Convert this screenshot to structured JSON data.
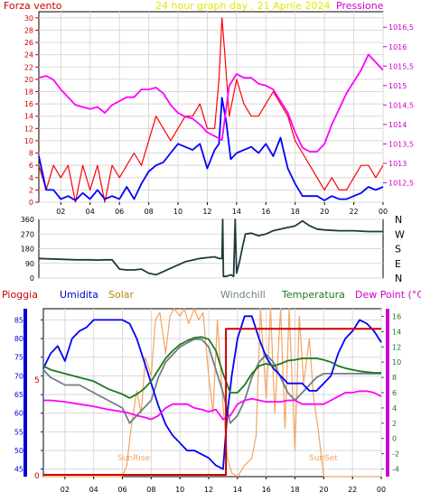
{
  "title": "24 hour graph day , 21 Aprile 2024",
  "colors": {
    "wind": "#ff0000",
    "gust": "#0000ff",
    "pressure": "#ff00ff",
    "direction": "#1f3b3b",
    "humidity": "#0000ff",
    "solar": "#f4a460",
    "windchill": "#708080",
    "temperature": "#1a7a1a",
    "dewpoint": "#ff00ff",
    "rain": "#cc0000",
    "axis_left": "#0000cc",
    "axis_pressure": "#cc00cc",
    "axis_right_bottom": "#1a7a1a",
    "grid": "#d8d8d8",
    "frame": "#000000"
  },
  "chart_data": [
    {
      "type": "line",
      "panel": "wind",
      "left_label": "Forza vento",
      "title": "24 hour graph day , 21 Aprile 2024",
      "right_label": "Pressione",
      "x_ticks": [
        "02",
        "04",
        "06",
        "08",
        "10",
        "12",
        "14",
        "16",
        "18",
        "20",
        "22",
        "00"
      ],
      "x_range": [
        0.5,
        24.0
      ],
      "y_ticks": [
        "0",
        "2",
        "4",
        "6",
        "8",
        "10",
        "12",
        "14",
        "16",
        "18",
        "20",
        "22",
        "24",
        "26",
        "28",
        "30"
      ],
      "ylim": [
        0,
        31
      ],
      "y2_ticks": [
        "1012,5",
        "1013",
        "1013,5",
        "1014",
        "1014,5",
        "1015",
        "1015,5",
        "1016",
        "1016,5"
      ],
      "y2_values": [
        1012.5,
        1013,
        1013.5,
        1014,
        1014.5,
        1015,
        1015.5,
        1016,
        1016.5
      ],
      "y2lim": [
        1012.0,
        1016.9
      ],
      "series": [
        {
          "id": "gust",
          "axis": "left",
          "x": [
            0.5,
            1.0,
            1.5,
            2.0,
            2.5,
            3.0,
            3.5,
            4.0,
            4.5,
            5.0,
            5.5,
            6.0,
            6.5,
            7.0,
            7.5,
            8.0,
            8.5,
            9.0,
            9.5,
            10.0,
            10.5,
            11.0,
            11.5,
            12.0,
            12.5,
            12.8,
            13.0,
            13.2,
            13.5,
            14.0,
            14.5,
            15.0,
            15.5,
            16.0,
            16.5,
            17.0,
            17.5,
            18.0,
            18.5,
            19.0,
            19.5,
            20.0,
            20.5,
            21.0,
            21.5,
            22.0,
            22.5,
            23.0,
            23.5,
            24.0
          ],
          "values": [
            6,
            2,
            6,
            4,
            6,
            0,
            6,
            2,
            6,
            0,
            6,
            4,
            6,
            8,
            6,
            10,
            14,
            12,
            10,
            12,
            14,
            14,
            16,
            12,
            12,
            20,
            30,
            24,
            14,
            20,
            16,
            14,
            14,
            16,
            18,
            16,
            14,
            10,
            8,
            6,
            4,
            2,
            4,
            2,
            2,
            4,
            6,
            6,
            4,
            6
          ]
        },
        {
          "id": "wind",
          "axis": "left",
          "x": [
            0.5,
            1.0,
            1.5,
            2.0,
            2.5,
            3.0,
            3.5,
            4.0,
            4.5,
            5.0,
            5.5,
            6.0,
            6.5,
            7.0,
            7.5,
            8.0,
            8.5,
            9.0,
            9.5,
            10.0,
            10.5,
            11.0,
            11.5,
            12.0,
            12.5,
            12.8,
            13.0,
            13.3,
            13.6,
            14.0,
            14.5,
            15.0,
            15.5,
            16.0,
            16.5,
            17.0,
            17.5,
            18.0,
            18.5,
            19.0,
            19.5,
            20.0,
            20.5,
            21.0,
            21.5,
            22.0,
            22.5,
            23.0,
            23.5,
            24.0
          ],
          "values": [
            7.5,
            2,
            2,
            0.5,
            1,
            0.3,
            1.5,
            0.5,
            2,
            0.5,
            1,
            0.5,
            2.5,
            0.5,
            3,
            5,
            6,
            6.5,
            8,
            9.5,
            9,
            8.5,
            9.5,
            5.5,
            8.5,
            9.5,
            17,
            13,
            7,
            8,
            8.5,
            9,
            8,
            9.5,
            7.5,
            10.5,
            5.5,
            3,
            1,
            1,
            1,
            0.3,
            1,
            0.5,
            0.5,
            1,
            1.5,
            2.5,
            2,
            2.5
          ]
        },
        {
          "id": "pressure",
          "axis": "right",
          "x": [
            0.5,
            1.0,
            1.5,
            2.0,
            2.5,
            3.0,
            3.5,
            4.0,
            4.5,
            5.0,
            5.5,
            6.0,
            6.5,
            7.0,
            7.5,
            8.0,
            8.5,
            9.0,
            9.5,
            10.0,
            10.5,
            11.0,
            11.5,
            12.0,
            12.5,
            13.0,
            13.5,
            14.0,
            14.5,
            15.0,
            15.5,
            16.0,
            16.5,
            17.0,
            17.5,
            18.0,
            18.5,
            19.0,
            19.5,
            20.0,
            20.5,
            21.0,
            21.5,
            22.0,
            22.5,
            23.0,
            23.5,
            24.0
          ],
          "values": [
            1015.2,
            1015.25,
            1015.15,
            1014.9,
            1014.7,
            1014.5,
            1014.45,
            1014.4,
            1014.45,
            1014.3,
            1014.5,
            1014.6,
            1014.7,
            1014.7,
            1014.9,
            1014.9,
            1014.95,
            1014.8,
            1014.5,
            1014.3,
            1014.2,
            1014.15,
            1014.0,
            1013.8,
            1013.7,
            1013.6,
            1015.0,
            1015.3,
            1015.2,
            1015.2,
            1015.05,
            1015.0,
            1014.9,
            1014.6,
            1014.3,
            1013.8,
            1013.4,
            1013.3,
            1013.3,
            1013.5,
            1014.0,
            1014.4,
            1014.8,
            1015.1,
            1015.4,
            1015.8,
            1015.6,
            1015.4
          ]
        }
      ]
    },
    {
      "type": "line",
      "panel": "direction",
      "x_range": [
        0.5,
        24.0
      ],
      "y_ticks": [
        "0",
        "90",
        "180",
        "270",
        "360"
      ],
      "ylim": [
        0,
        360
      ],
      "compass": [
        "N",
        "W",
        "S",
        "E",
        "N"
      ],
      "series": [
        {
          "id": "direction",
          "x": [
            0.5,
            1.0,
            2.0,
            3.0,
            3.5,
            4.0,
            4.5,
            5.0,
            5.5,
            6.0,
            6.5,
            7.0,
            7.5,
            8.0,
            8.5,
            9.0,
            9.5,
            10.0,
            10.5,
            11.0,
            11.5,
            12.0,
            12.5,
            12.8,
            13.0,
            13.05,
            13.1,
            13.3,
            13.6,
            13.8,
            13.9,
            14.0,
            14.2,
            14.4,
            14.6,
            15.0,
            15.5,
            16.0,
            16.5,
            17.0,
            17.5,
            18.0,
            18.5,
            19.0,
            19.5,
            20.0,
            21.0,
            22.0,
            23.0,
            24.0
          ],
          "values": [
            120,
            118,
            115,
            112,
            112,
            112,
            110,
            112,
            112,
            55,
            50,
            50,
            55,
            30,
            20,
            40,
            60,
            80,
            100,
            110,
            120,
            125,
            130,
            120,
            120,
            360,
            10,
            10,
            20,
            10,
            360,
            30,
            100,
            190,
            270,
            275,
            260,
            270,
            290,
            300,
            310,
            320,
            350,
            320,
            300,
            295,
            290,
            290,
            285,
            285
          ]
        }
      ]
    },
    {
      "type": "line",
      "panel": "weather",
      "legend": [
        "Pioggia",
        "Umidita",
        "Solar",
        "Windchill",
        "Temperatura",
        "Dew Point (°C)"
      ],
      "x_ticks": [
        "02",
        "04",
        "06",
        "08",
        "10",
        "12",
        "14",
        "16",
        "18",
        "20",
        "22",
        "00"
      ],
      "x_range": [
        0.5,
        24.0
      ],
      "y_ticks": [
        "45",
        "50",
        "55",
        "60",
        "65",
        "70",
        "75",
        "80",
        "85"
      ],
      "ylim": [
        43,
        88
      ],
      "y2_ticks": [
        "-4",
        "-2",
        "0",
        "2",
        "4",
        "6",
        "8",
        "10",
        "12",
        "14",
        "16"
      ],
      "y2lim": [
        -5,
        17
      ],
      "rain_tick": "5",
      "rain_zero_tick": "0",
      "annotations": [
        "SunRise",
        "SunSet"
      ],
      "series": [
        {
          "id": "humidity",
          "axis": "left",
          "x": [
            0.5,
            1.0,
            1.5,
            2.0,
            2.5,
            3.0,
            3.5,
            4.0,
            4.5,
            5.0,
            5.5,
            6.0,
            6.5,
            7.0,
            7.5,
            8.0,
            8.5,
            9.0,
            9.5,
            10.0,
            10.5,
            11.0,
            11.5,
            12.0,
            12.5,
            13.0,
            13.3,
            13.6,
            14.0,
            14.5,
            15.0,
            15.5,
            16.0,
            16.5,
            17.0,
            17.5,
            18.0,
            18.5,
            19.0,
            19.5,
            20.0,
            20.5,
            21.0,
            21.5,
            22.0,
            22.5,
            23.0,
            23.5,
            24.0
          ],
          "values": [
            72,
            76,
            78,
            74,
            80,
            82,
            83,
            85,
            85,
            85,
            85,
            85,
            84,
            80,
            74,
            68,
            62,
            57,
            54,
            52,
            50,
            50,
            49,
            48,
            46,
            45,
            60,
            70,
            80,
            86,
            86,
            80,
            75,
            72,
            70,
            68,
            68,
            68,
            66,
            66,
            68,
            70,
            76,
            80,
            82,
            85,
            84,
            82,
            79
          ]
        },
        {
          "id": "solar",
          "axis": "left",
          "x": [
            0.5,
            6.0,
            6.3,
            6.6,
            7.0,
            7.3,
            7.6,
            8.0,
            8.3,
            8.6,
            9.0,
            9.3,
            9.6,
            10.0,
            10.3,
            10.6,
            11.0,
            11.3,
            11.6,
            12.0,
            12.3,
            12.6,
            13.0,
            13.3,
            13.6,
            14.0,
            14.5,
            15.0,
            15.3,
            15.6,
            16.0,
            16.3,
            16.6,
            17.0,
            17.3,
            17.6,
            18.0,
            18.3,
            18.6,
            19.0,
            19.3,
            19.6,
            20.0,
            24.0
          ],
          "values": [
            43,
            43,
            46,
            56,
            66,
            60,
            75,
            70,
            85,
            87,
            76,
            86,
            88,
            86,
            88,
            84,
            88,
            85,
            87,
            70,
            60,
            85,
            62,
            48,
            44,
            43,
            46,
            48,
            54,
            88,
            64,
            88,
            60,
            88,
            56,
            88,
            50,
            86,
            68,
            80,
            64,
            56,
            43,
            43
          ]
        },
        {
          "id": "windchill",
          "axis": "right",
          "x": [
            0.5,
            1.0,
            2.0,
            3.0,
            4.0,
            5.0,
            6.0,
            6.5,
            7.0,
            7.5,
            8.0,
            8.5,
            9.0,
            9.5,
            10.0,
            10.5,
            11.0,
            11.5,
            12.0,
            12.5,
            13.0,
            13.5,
            14.0,
            14.5,
            15.0,
            15.5,
            16.0,
            16.5,
            17.0,
            17.5,
            18.0,
            18.5,
            19.0,
            19.5,
            20.0,
            20.5,
            21.0,
            21.5,
            22.0,
            22.5,
            23.0,
            23.5,
            24.0
          ],
          "values": [
            9,
            8,
            7,
            7,
            6,
            5,
            4,
            2,
            3,
            4,
            5,
            8,
            10,
            11,
            12,
            12.5,
            13,
            13,
            12,
            9,
            6,
            2,
            3,
            5,
            8,
            10,
            11,
            10,
            8,
            6,
            5,
            6,
            7,
            8,
            8.5,
            8.5,
            8.5,
            8.5,
            8.5,
            8.5,
            8.5,
            8.5,
            8.5
          ]
        },
        {
          "id": "temperature",
          "axis": "right",
          "x": [
            0.5,
            1.0,
            2.0,
            3.0,
            4.0,
            5.0,
            6.0,
            6.5,
            7.0,
            7.5,
            8.0,
            8.5,
            9.0,
            9.5,
            10.0,
            10.5,
            11.0,
            11.5,
            12.0,
            12.5,
            13.0,
            13.5,
            14.0,
            14.5,
            15.0,
            15.5,
            16.0,
            16.5,
            17.0,
            17.5,
            18.0,
            18.5,
            19.0,
            19.5,
            20.0,
            20.5,
            21.0,
            21.5,
            22.0,
            22.5,
            23.0,
            23.5,
            24.0
          ],
          "values": [
            9.5,
            9,
            8.5,
            8,
            7.5,
            6.5,
            5.8,
            5.3,
            5.8,
            6.5,
            7.5,
            9,
            10.5,
            11.5,
            12.3,
            12.8,
            13.2,
            13.3,
            13,
            11.5,
            8.5,
            6,
            6,
            7,
            8.5,
            9.5,
            9.8,
            9.5,
            9.8,
            10.2,
            10.3,
            10.5,
            10.5,
            10.5,
            10.3,
            10,
            9.5,
            9.2,
            9,
            8.8,
            8.7,
            8.6,
            8.6
          ]
        },
        {
          "id": "dewpoint",
          "axis": "right",
          "x": [
            0.5,
            1.0,
            2.0,
            3.0,
            4.0,
            5.0,
            6.0,
            6.5,
            7.0,
            7.5,
            8.0,
            8.5,
            9.0,
            9.5,
            10.0,
            10.5,
            11.0,
            11.5,
            12.0,
            12.5,
            13.0,
            13.5,
            14.0,
            14.5,
            15.0,
            15.5,
            16.0,
            16.5,
            17.0,
            17.5,
            18.0,
            18.5,
            19.0,
            19.5,
            20.0,
            20.5,
            21.0,
            21.5,
            22.0,
            22.5,
            23.0,
            23.5,
            24.0
          ],
          "values": [
            5,
            5,
            4.8,
            4.5,
            4.2,
            3.8,
            3.5,
            3.3,
            3.0,
            2.8,
            2.5,
            3.0,
            4.0,
            4.5,
            4.5,
            4.5,
            4.0,
            3.8,
            3.5,
            3.8,
            2.5,
            3.0,
            4.5,
            5.0,
            5.2,
            5.0,
            4.8,
            4.8,
            4.8,
            5.0,
            5.0,
            4.5,
            4.5,
            4.5,
            4.5,
            5.0,
            5.5,
            6.0,
            6.0,
            6.2,
            6.2,
            6.0,
            5.5
          ]
        },
        {
          "id": "rain",
          "axis": "rain",
          "x": [
            0.5,
            13.2,
            13.2,
            24.0
          ],
          "values": [
            0,
            0,
            8,
            8
          ]
        }
      ]
    }
  ]
}
